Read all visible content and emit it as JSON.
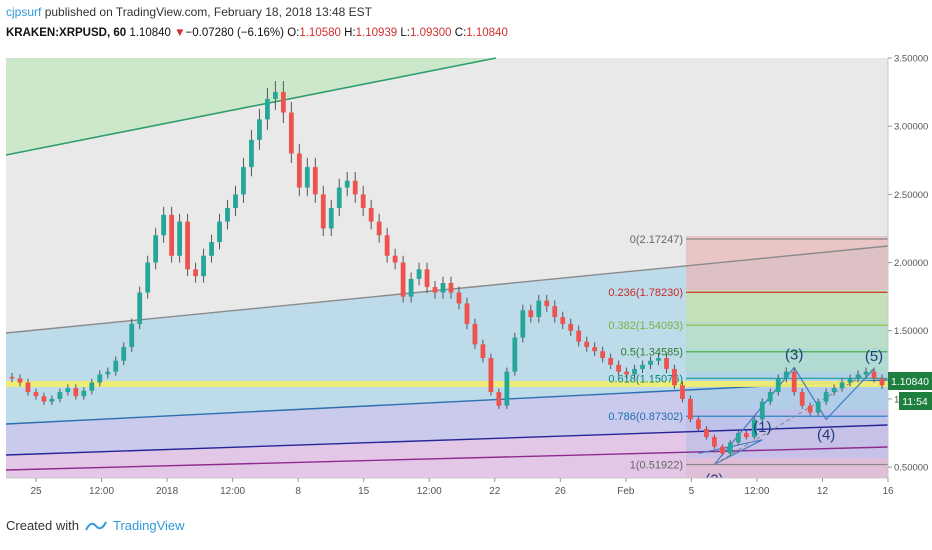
{
  "header": {
    "user": "cjpsurf",
    "published": "published on TradingView.com, February 18, 2018 13:48 EST",
    "symbol": "KRAKEN:XRPUSD, 60",
    "last": "1.10840",
    "arrow": "▼",
    "change": "−0.07280 (−6.16%)",
    "o_label": "O:",
    "o_value": "1.10580",
    "h_label": "H:",
    "h_value": "1.10939",
    "l_label": "L:",
    "l_value": "1.09300",
    "c_label": "C:",
    "c_value": "1.10840"
  },
  "footer": {
    "created": "Created with",
    "brand": "TradingView"
  },
  "colors": {
    "up": "#26a69a",
    "down": "#ef5350",
    "wick": "#555555",
    "accent": "#2f9ad8"
  },
  "chart_data": {
    "type": "candlestick",
    "x_ticks": [
      "25",
      "12:00",
      "2018",
      "12:00",
      "8",
      "15",
      "12:00",
      "22",
      "26",
      "Feb",
      "5",
      "12:00",
      "12",
      "16"
    ],
    "y_ticks": [
      "3.50000",
      "3.00000",
      "2.50000",
      "2.00000",
      "1.50000",
      "1.00000",
      "0.50000"
    ],
    "ylim": [
      0.42,
      3.5
    ],
    "last_price": "1.10840",
    "countdown": "11:54",
    "fib_levels": [
      {
        "ratio": 0,
        "price": 2.17247,
        "label": "0(2.17247)"
      },
      {
        "ratio": 0.236,
        "price": 1.7823,
        "label": "0.236(1.78230)"
      },
      {
        "ratio": 0.382,
        "price": 1.54093,
        "label": "0.382(1.54093)"
      },
      {
        "ratio": 0.5,
        "price": 1.34585,
        "label": "0.5(1.34585)"
      },
      {
        "ratio": 0.618,
        "price": 1.15076,
        "label": "0.618(1.15076)"
      },
      {
        "ratio": 0.786,
        "price": 0.87302,
        "label": "0.786(0.87302)"
      },
      {
        "ratio": 1,
        "price": 0.51922,
        "label": "1(0.51922)"
      }
    ],
    "waves": [
      {
        "label": "(1)",
        "price": 0.7
      },
      {
        "label": "(2)",
        "price": 0.52
      },
      {
        "label": "(3)",
        "price": 1.23
      },
      {
        "label": "(4)",
        "price": 0.85
      },
      {
        "label": "(5)",
        "price": 1.22
      }
    ],
    "series": [
      {
        "name": "XRPUSD",
        "values": [
          1.15,
          1.12,
          1.05,
          1.02,
          0.98,
          1.0,
          1.05,
          1.08,
          1.02,
          1.06,
          1.12,
          1.18,
          1.2,
          1.28,
          1.38,
          1.55,
          1.78,
          2.0,
          2.2,
          2.35,
          2.05,
          2.3,
          1.95,
          1.9,
          2.05,
          2.15,
          2.3,
          2.4,
          2.5,
          2.7,
          2.9,
          3.05,
          3.2,
          3.25,
          3.1,
          2.8,
          2.55,
          2.7,
          2.5,
          2.25,
          2.4,
          2.55,
          2.6,
          2.5,
          2.4,
          2.3,
          2.2,
          2.05,
          2.0,
          1.75,
          1.88,
          1.95,
          1.82,
          1.78,
          1.85,
          1.78,
          1.7,
          1.55,
          1.4,
          1.3,
          1.05,
          0.95,
          1.2,
          1.45,
          1.65,
          1.6,
          1.72,
          1.68,
          1.6,
          1.55,
          1.5,
          1.42,
          1.38,
          1.35,
          1.3,
          1.25,
          1.2,
          1.18,
          1.22,
          1.25,
          1.28,
          1.3,
          1.22,
          1.1,
          1.0,
          0.85,
          0.78,
          0.72,
          0.65,
          0.6,
          0.68,
          0.75,
          0.72,
          0.85,
          0.98,
          1.05,
          1.15,
          1.2,
          1.05,
          0.95,
          0.9,
          0.98,
          1.05,
          1.08,
          1.12,
          1.15,
          1.18,
          1.2,
          1.15,
          1.1
        ]
      }
    ]
  }
}
